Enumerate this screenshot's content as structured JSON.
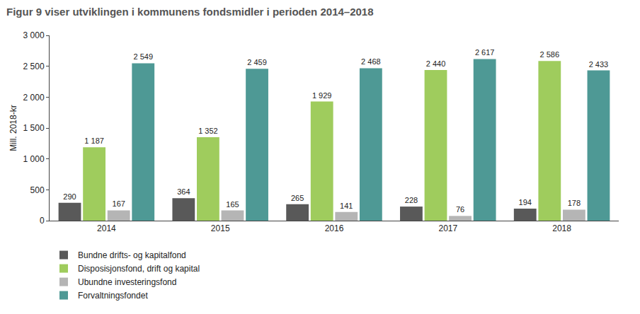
{
  "chart_data": {
    "type": "bar",
    "title": "Figur 9 viser utviklingen i kommunens fondsmidler i perioden 2014–2018",
    "y_label": "Mill. 2018-kr",
    "categories": [
      "2014",
      "2015",
      "2016",
      "2017",
      "2018"
    ],
    "series": [
      {
        "name": "Bundne drifts- og kapitalfond",
        "color": "#595959",
        "values": [
          290,
          364,
          265,
          228,
          194
        ],
        "value_labels": [
          "290",
          "364",
          "265",
          "228",
          "194"
        ]
      },
      {
        "name": "Disposisjonsfond, drift og kapital",
        "color": "#9fcc5d",
        "values": [
          1187,
          1352,
          1929,
          2440,
          2586
        ],
        "value_labels": [
          "1 187",
          "1 352",
          "1 929",
          "2 440",
          "2 586"
        ]
      },
      {
        "name": "Ubundne investeringsfond",
        "color": "#b5b5b5",
        "values": [
          167,
          165,
          141,
          76,
          178
        ],
        "value_labels": [
          "167",
          "165",
          "141",
          "76",
          "178"
        ]
      },
      {
        "name": "Forvaltningsfondet",
        "color": "#4e9995",
        "values": [
          2549,
          2459,
          2468,
          2617,
          2433
        ],
        "value_labels": [
          "2 549",
          "2 459",
          "2 468",
          "2 617",
          "2 433"
        ]
      }
    ],
    "ylim": [
      0,
      3000
    ],
    "yticks": [
      0,
      500,
      {
        "value": 1000,
        "label": "1 000"
      },
      {
        "value": 1500,
        "label": "1 500"
      },
      {
        "value": 2000,
        "label": "2 000"
      },
      {
        "value": 2500,
        "label": "2 500"
      },
      {
        "value": 3000,
        "label": "3 000"
      }
    ],
    "grid": false,
    "data_labels": true,
    "legend": "bottom"
  }
}
